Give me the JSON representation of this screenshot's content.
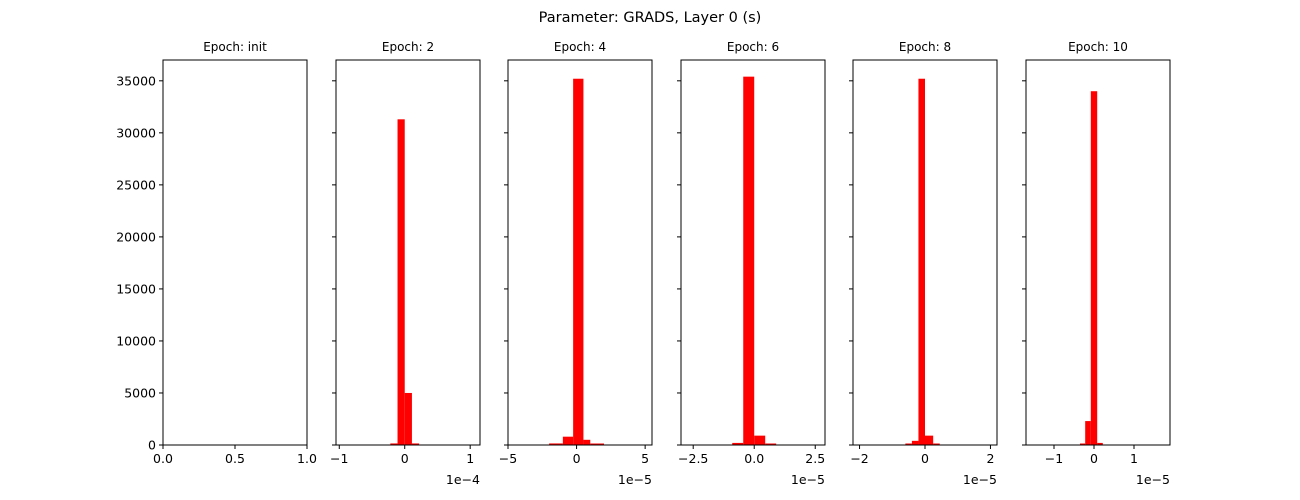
{
  "figure": {
    "title": "Parameter: GRADS, Layer 0 (s)"
  },
  "chart_data": [
    {
      "type": "bar",
      "title": "Epoch: init",
      "xlim": [
        0.0,
        1.0
      ],
      "xticks": [
        "0.0",
        "0.5",
        "1.0"
      ],
      "x_offset_label": "",
      "ylim": [
        0,
        37000
      ],
      "yticks": [
        "0",
        "5000",
        "10000",
        "15000",
        "20000",
        "25000",
        "30000",
        "35000"
      ],
      "bins": []
    },
    {
      "type": "bar",
      "title": "Epoch: 2",
      "xlim": [
        -1.05,
        1.15
      ],
      "xticks": [
        "−1",
        "0",
        "1"
      ],
      "x_offset_label": "1e−4",
      "ylim": [
        0,
        37000
      ],
      "yticks": [],
      "bins": [
        {
          "x0": -0.22,
          "x1": -0.11,
          "count": 150
        },
        {
          "x0": -0.11,
          "x1": 0.0,
          "count": 31300
        },
        {
          "x0": 0.0,
          "x1": 0.11,
          "count": 5000
        },
        {
          "x0": 0.11,
          "x1": 0.22,
          "count": 150
        }
      ]
    },
    {
      "type": "bar",
      "title": "Epoch: 4",
      "xlim": [
        -5.0,
        5.5
      ],
      "xticks": [
        "−5",
        "0",
        "5"
      ],
      "x_offset_label": "1e−5",
      "ylim": [
        0,
        37000
      ],
      "yticks": [],
      "bins": [
        {
          "x0": -2.0,
          "x1": -1.0,
          "count": 150
        },
        {
          "x0": -1.0,
          "x1": -0.25,
          "count": 800
        },
        {
          "x0": -0.25,
          "x1": 0.5,
          "count": 35200
        },
        {
          "x0": 0.5,
          "x1": 1.0,
          "count": 500
        },
        {
          "x0": 1.0,
          "x1": 2.0,
          "count": 100
        }
      ]
    },
    {
      "type": "bar",
      "title": "Epoch: 6",
      "xlim": [
        -3.0,
        2.9
      ],
      "xticks": [
        "−2.5",
        "0.0",
        "2.5"
      ],
      "x_offset_label": "1e−5",
      "ylim": [
        0,
        37000
      ],
      "yticks": [],
      "bins": [
        {
          "x0": -0.9,
          "x1": -0.45,
          "count": 200
        },
        {
          "x0": -0.45,
          "x1": 0.0,
          "count": 35400
        },
        {
          "x0": 0.0,
          "x1": 0.45,
          "count": 900
        },
        {
          "x0": 0.45,
          "x1": 0.9,
          "count": 100
        }
      ]
    },
    {
      "type": "bar",
      "title": "Epoch: 8",
      "xlim": [
        -2.2,
        2.2
      ],
      "xticks": [
        "−2",
        "0",
        "2"
      ],
      "x_offset_label": "1e−5",
      "ylim": [
        0,
        37000
      ],
      "yticks": [],
      "bins": [
        {
          "x0": -0.6,
          "x1": -0.4,
          "count": 100
        },
        {
          "x0": -0.4,
          "x1": -0.2,
          "count": 400
        },
        {
          "x0": -0.2,
          "x1": 0.0,
          "count": 35200
        },
        {
          "x0": 0.0,
          "x1": 0.25,
          "count": 900
        },
        {
          "x0": 0.25,
          "x1": 0.45,
          "count": 100
        }
      ]
    },
    {
      "type": "bar",
      "title": "Epoch: 10",
      "xlim": [
        -1.7,
        1.9
      ],
      "xticks": [
        "−1",
        "0",
        "1"
      ],
      "x_offset_label": "1e−5",
      "ylim": [
        0,
        37000
      ],
      "yticks": [],
      "bins": [
        {
          "x0": -0.35,
          "x1": -0.22,
          "count": 100
        },
        {
          "x0": -0.22,
          "x1": -0.08,
          "count": 2300
        },
        {
          "x0": -0.08,
          "x1": 0.08,
          "count": 34000
        },
        {
          "x0": 0.08,
          "x1": 0.22,
          "count": 200
        }
      ]
    }
  ],
  "colors": {
    "bar": "#ff0000",
    "axis": "#000000",
    "background": "#ffffff"
  }
}
